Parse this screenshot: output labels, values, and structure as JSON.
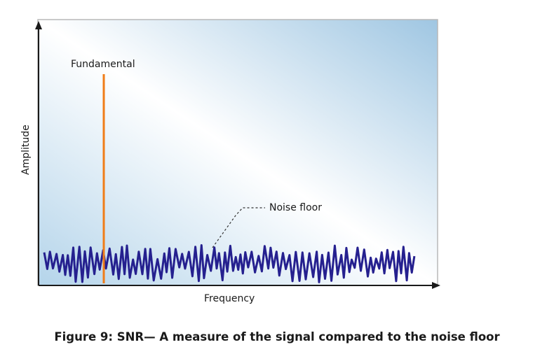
{
  "diagram": {
    "fundamental_label": "Fundamental",
    "noise_label": "Noise floor",
    "x_axis_label": "Frequency",
    "y_axis_label": "Amplitude",
    "colors": {
      "fundamental": "#f07d18",
      "noise": "#25208f",
      "background_light": "#ffffff",
      "background_dark": "#a8cce6",
      "axis": "#1a1a1a"
    }
  },
  "caption": "Figure 9: SNR— A measure of the signal compared to the noise floor"
}
